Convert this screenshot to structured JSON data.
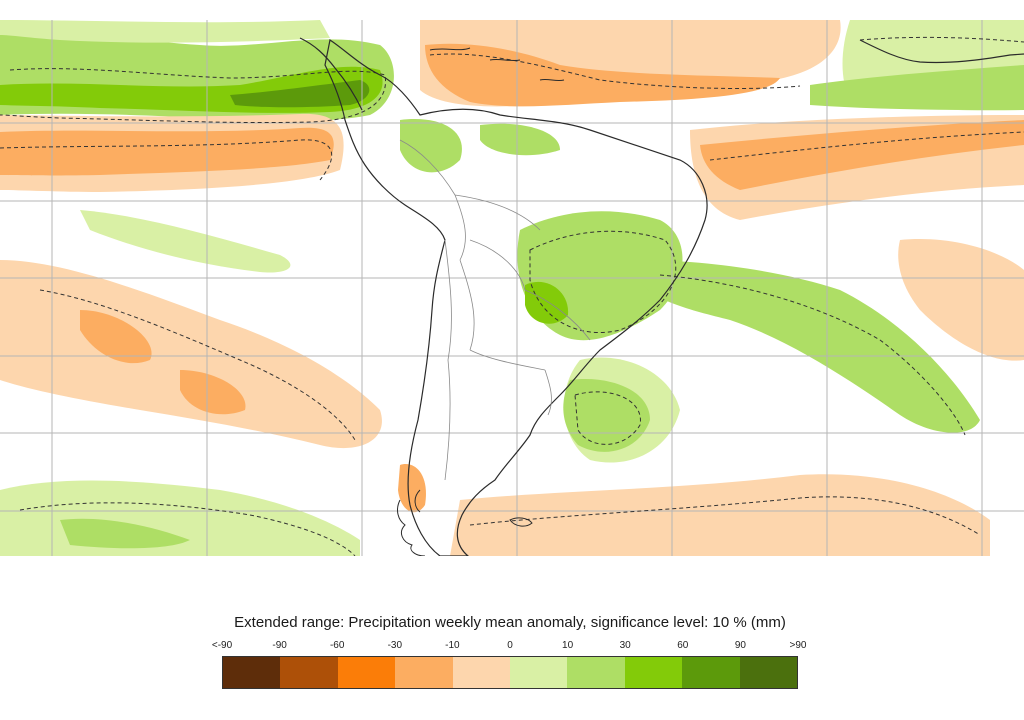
{
  "legend": {
    "title": "Extended range: Precipitation weekly mean anomaly, significance level: 10 % (mm)",
    "tick_labels": [
      "<-90",
      "-90",
      "-60",
      "-30",
      "-10",
      "0",
      "10",
      "30",
      "60",
      "90",
      ">90"
    ],
    "colors": [
      "#5e2d0a",
      "#ad5008",
      "#fb7d08",
      "#fcad61",
      "#fdd6ad",
      "#d9f0a5",
      "#aede65",
      "#83cb09",
      "#5c9a0b",
      "#4b700d"
    ]
  },
  "map": {
    "region": "South America",
    "palette": {
      "land": "#ffffff",
      "coastline": "#2b2b2b",
      "borders": "#8a8a8a",
      "grid": "#b5b5b5",
      "significance_contour": "#333333"
    }
  }
}
